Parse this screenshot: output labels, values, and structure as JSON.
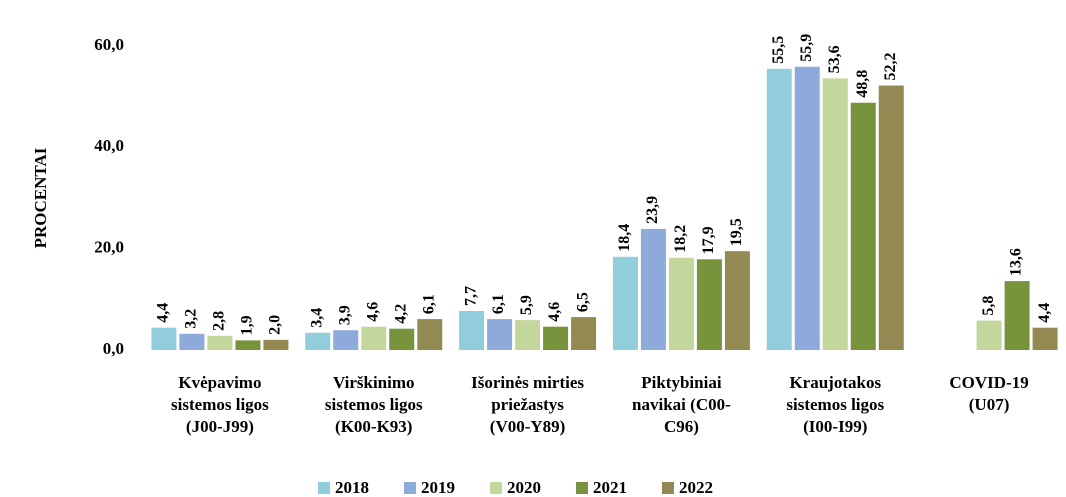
{
  "chart_data": {
    "type": "bar",
    "y_label": "PROCENTAI",
    "categories": [
      [
        "Kvėpavimo",
        "sistemos ligos",
        "(J00-J99)"
      ],
      [
        "Virškinimo",
        "sistemos ligos",
        "(K00-K93)"
      ],
      [
        "Išorinės mirties",
        "priežastys",
        "(V00-Y89)"
      ],
      [
        "Piktybiniai",
        "navikai (C00-",
        "C96)"
      ],
      [
        "Kraujotakos",
        "sistemos ligos",
        "(I00-I99)"
      ],
      [
        "COVID-19",
        "(U07)"
      ]
    ],
    "series": [
      {
        "name": "2018",
        "color": "#92cddc",
        "values": [
          4.4,
          3.4,
          7.7,
          18.4,
          55.5,
          null
        ],
        "value_labels": [
          "4,4",
          "3,4",
          "7,7",
          "18,4",
          "55,5",
          null
        ]
      },
      {
        "name": "2019",
        "color": "#8eaadb",
        "values": [
          3.2,
          3.9,
          6.1,
          23.9,
          55.9,
          null
        ],
        "value_labels": [
          "3,2",
          "3,9",
          "6,1",
          "23,9",
          "55,9",
          null
        ]
      },
      {
        "name": "2020",
        "color": "#c3d69b",
        "values": [
          2.8,
          4.6,
          5.9,
          18.2,
          53.6,
          5.8
        ],
        "value_labels": [
          "2,8",
          "4,6",
          "5,9",
          "18,2",
          "53,6",
          "5,8"
        ]
      },
      {
        "name": "2021",
        "color": "#77933c",
        "values": [
          1.9,
          4.2,
          4.6,
          17.9,
          48.8,
          13.6
        ],
        "value_labels": [
          "1,9",
          "4,2",
          "4,6",
          "17,9",
          "48,8",
          "13,6"
        ]
      },
      {
        "name": "2022",
        "color": "#938953",
        "values": [
          2.0,
          6.1,
          6.5,
          19.5,
          52.2,
          4.4
        ],
        "value_labels": [
          "2,0",
          "6,1",
          "6,5",
          "19,5",
          "52,2",
          "4,4"
        ]
      }
    ],
    "ylim": [
      0,
      60
    ],
    "yticks": [
      {
        "value": 0,
        "label": "0,0"
      },
      {
        "value": 20,
        "label": "20,0"
      },
      {
        "value": 40,
        "label": "40,0"
      },
      {
        "value": 60,
        "label": "60,0"
      }
    ],
    "grid": false,
    "legend": "bottom"
  }
}
